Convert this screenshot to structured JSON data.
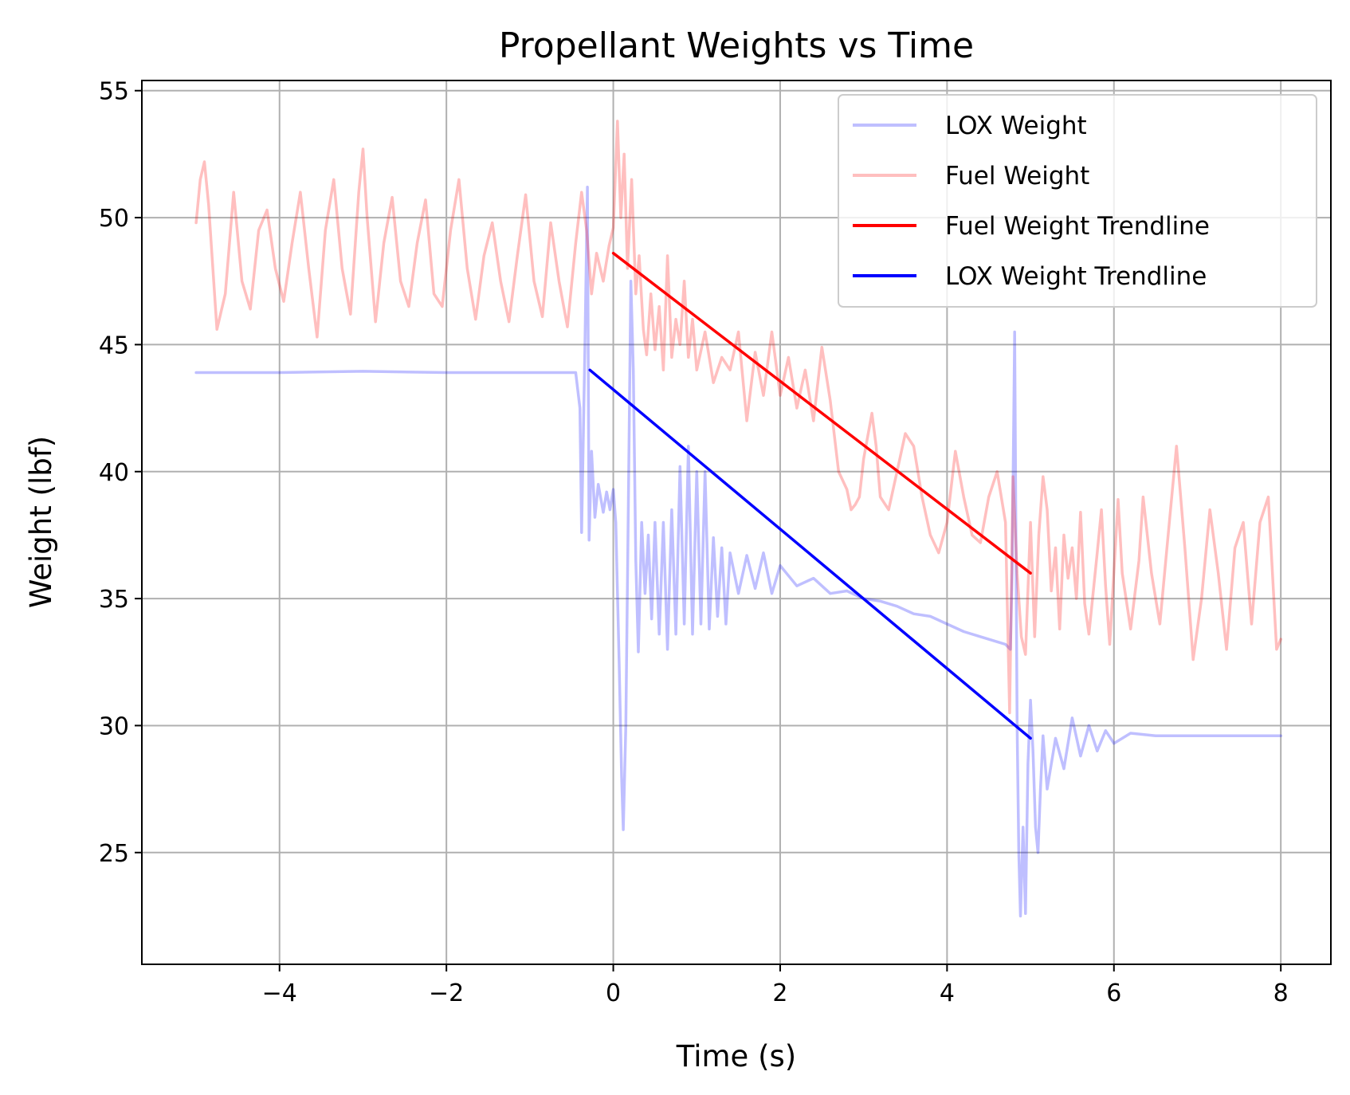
{
  "chart_data": {
    "type": "line",
    "title": "Propellant Weights vs Time",
    "xlabel": "Time (s)",
    "ylabel": "Weight (lbf)",
    "xlim": [
      -5.65,
      8.6
    ],
    "ylim": [
      20.6,
      55.4
    ],
    "xticks": [
      -4,
      -2,
      0,
      2,
      4,
      6,
      8
    ],
    "yticks": [
      25,
      30,
      35,
      40,
      45,
      50,
      55
    ],
    "grid": true,
    "legend_position": "top-right",
    "series": [
      {
        "name": "LOX Weight",
        "color": "#0000ff",
        "opacity": 0.25,
        "points": [
          [
            -5.0,
            43.9
          ],
          [
            -4.0,
            43.9
          ],
          [
            -3.0,
            43.95
          ],
          [
            -2.0,
            43.9
          ],
          [
            -1.0,
            43.9
          ],
          [
            -0.45,
            43.9
          ],
          [
            -0.4,
            42.5
          ],
          [
            -0.38,
            37.6
          ],
          [
            -0.34,
            45.0
          ],
          [
            -0.31,
            51.2
          ],
          [
            -0.29,
            37.3
          ],
          [
            -0.26,
            40.8
          ],
          [
            -0.22,
            38.2
          ],
          [
            -0.18,
            39.5
          ],
          [
            -0.12,
            38.4
          ],
          [
            -0.08,
            39.2
          ],
          [
            -0.04,
            38.5
          ],
          [
            0.0,
            39.3
          ],
          [
            0.03,
            38.0
          ],
          [
            0.07,
            32.5
          ],
          [
            0.1,
            28.0
          ],
          [
            0.12,
            25.9
          ],
          [
            0.15,
            30.0
          ],
          [
            0.18,
            38.5
          ],
          [
            0.21,
            47.5
          ],
          [
            0.24,
            44.0
          ],
          [
            0.27,
            36.5
          ],
          [
            0.3,
            32.9
          ],
          [
            0.34,
            38.0
          ],
          [
            0.38,
            35.2
          ],
          [
            0.42,
            37.5
          ],
          [
            0.46,
            34.2
          ],
          [
            0.5,
            38.0
          ],
          [
            0.55,
            33.6
          ],
          [
            0.6,
            38.0
          ],
          [
            0.65,
            33.0
          ],
          [
            0.7,
            38.5
          ],
          [
            0.75,
            33.6
          ],
          [
            0.8,
            40.2
          ],
          [
            0.85,
            34.0
          ],
          [
            0.9,
            41.0
          ],
          [
            0.95,
            33.6
          ],
          [
            1.0,
            40.0
          ],
          [
            1.05,
            34.0
          ],
          [
            1.1,
            40.0
          ],
          [
            1.15,
            33.8
          ],
          [
            1.2,
            37.4
          ],
          [
            1.25,
            34.3
          ],
          [
            1.3,
            37.0
          ],
          [
            1.35,
            34.0
          ],
          [
            1.4,
            36.8
          ],
          [
            1.5,
            35.2
          ],
          [
            1.6,
            36.7
          ],
          [
            1.7,
            35.4
          ],
          [
            1.8,
            36.8
          ],
          [
            1.9,
            35.2
          ],
          [
            2.0,
            36.3
          ],
          [
            2.2,
            35.5
          ],
          [
            2.4,
            35.8
          ],
          [
            2.6,
            35.2
          ],
          [
            2.8,
            35.3
          ],
          [
            3.0,
            35.0
          ],
          [
            3.2,
            34.9
          ],
          [
            3.4,
            34.7
          ],
          [
            3.6,
            34.4
          ],
          [
            3.8,
            34.3
          ],
          [
            4.0,
            34.0
          ],
          [
            4.2,
            33.7
          ],
          [
            4.4,
            33.5
          ],
          [
            4.6,
            33.3
          ],
          [
            4.7,
            33.2
          ],
          [
            4.76,
            33.0
          ],
          [
            4.78,
            36.0
          ],
          [
            4.81,
            45.5
          ],
          [
            4.84,
            30.0
          ],
          [
            4.86,
            25.0
          ],
          [
            4.88,
            22.5
          ],
          [
            4.91,
            26.0
          ],
          [
            4.94,
            22.6
          ],
          [
            4.97,
            28.5
          ],
          [
            5.0,
            31.0
          ],
          [
            5.03,
            29.0
          ],
          [
            5.06,
            26.0
          ],
          [
            5.09,
            25.0
          ],
          [
            5.12,
            27.5
          ],
          [
            5.15,
            29.6
          ],
          [
            5.2,
            27.5
          ],
          [
            5.3,
            29.5
          ],
          [
            5.4,
            28.3
          ],
          [
            5.5,
            30.3
          ],
          [
            5.6,
            28.8
          ],
          [
            5.7,
            30.0
          ],
          [
            5.8,
            29.0
          ],
          [
            5.9,
            29.8
          ],
          [
            6.0,
            29.3
          ],
          [
            6.2,
            29.7
          ],
          [
            6.5,
            29.6
          ],
          [
            7.0,
            29.6
          ],
          [
            7.5,
            29.6
          ],
          [
            8.0,
            29.6
          ]
        ]
      },
      {
        "name": "Fuel Weight",
        "color": "#ff0000",
        "opacity": 0.25,
        "points": [
          [
            -5.0,
            49.8
          ],
          [
            -4.95,
            51.5
          ],
          [
            -4.9,
            52.2
          ],
          [
            -4.85,
            50.5
          ],
          [
            -4.75,
            45.6
          ],
          [
            -4.65,
            47.0
          ],
          [
            -4.55,
            51.0
          ],
          [
            -4.45,
            47.5
          ],
          [
            -4.35,
            46.4
          ],
          [
            -4.25,
            49.5
          ],
          [
            -4.15,
            50.3
          ],
          [
            -4.05,
            48.0
          ],
          [
            -3.95,
            46.7
          ],
          [
            -3.85,
            49.0
          ],
          [
            -3.75,
            51.0
          ],
          [
            -3.65,
            48.0
          ],
          [
            -3.55,
            45.3
          ],
          [
            -3.45,
            49.5
          ],
          [
            -3.35,
            51.5
          ],
          [
            -3.25,
            48.0
          ],
          [
            -3.15,
            46.2
          ],
          [
            -3.05,
            51.0
          ],
          [
            -3.0,
            52.7
          ],
          [
            -2.95,
            50.0
          ],
          [
            -2.85,
            45.9
          ],
          [
            -2.75,
            49.0
          ],
          [
            -2.65,
            50.8
          ],
          [
            -2.55,
            47.5
          ],
          [
            -2.45,
            46.5
          ],
          [
            -2.35,
            49.0
          ],
          [
            -2.25,
            50.7
          ],
          [
            -2.15,
            47.0
          ],
          [
            -2.05,
            46.5
          ],
          [
            -1.95,
            49.5
          ],
          [
            -1.85,
            51.5
          ],
          [
            -1.75,
            48.0
          ],
          [
            -1.65,
            46.0
          ],
          [
            -1.55,
            48.5
          ],
          [
            -1.45,
            49.8
          ],
          [
            -1.35,
            47.5
          ],
          [
            -1.25,
            45.9
          ],
          [
            -1.15,
            48.5
          ],
          [
            -1.05,
            50.9
          ],
          [
            -0.95,
            47.5
          ],
          [
            -0.85,
            46.1
          ],
          [
            -0.75,
            49.8
          ],
          [
            -0.65,
            47.5
          ],
          [
            -0.55,
            45.7
          ],
          [
            -0.45,
            49.0
          ],
          [
            -0.38,
            51.0
          ],
          [
            -0.32,
            49.5
          ],
          [
            -0.26,
            47.0
          ],
          [
            -0.2,
            48.6
          ],
          [
            -0.12,
            47.5
          ],
          [
            -0.05,
            48.9
          ],
          [
            0.0,
            49.6
          ],
          [
            0.05,
            53.8
          ],
          [
            0.09,
            50.0
          ],
          [
            0.13,
            52.5
          ],
          [
            0.17,
            48.0
          ],
          [
            0.22,
            51.5
          ],
          [
            0.27,
            47.0
          ],
          [
            0.31,
            48.5
          ],
          [
            0.36,
            45.6
          ],
          [
            0.4,
            44.6
          ],
          [
            0.45,
            47.0
          ],
          [
            0.5,
            44.8
          ],
          [
            0.55,
            46.5
          ],
          [
            0.6,
            44.0
          ],
          [
            0.65,
            48.5
          ],
          [
            0.7,
            44.5
          ],
          [
            0.75,
            46.0
          ],
          [
            0.8,
            45.0
          ],
          [
            0.85,
            47.5
          ],
          [
            0.9,
            44.5
          ],
          [
            0.95,
            46.0
          ],
          [
            1.0,
            44.0
          ],
          [
            1.1,
            45.5
          ],
          [
            1.2,
            43.5
          ],
          [
            1.3,
            44.5
          ],
          [
            1.4,
            44.0
          ],
          [
            1.5,
            45.5
          ],
          [
            1.6,
            42.0
          ],
          [
            1.7,
            44.7
          ],
          [
            1.8,
            43.0
          ],
          [
            1.9,
            45.5
          ],
          [
            2.0,
            43.0
          ],
          [
            2.1,
            44.5
          ],
          [
            2.2,
            42.5
          ],
          [
            2.3,
            44.0
          ],
          [
            2.4,
            42.0
          ],
          [
            2.5,
            44.9
          ],
          [
            2.6,
            42.8
          ],
          [
            2.7,
            40.0
          ],
          [
            2.8,
            39.3
          ],
          [
            2.85,
            38.5
          ],
          [
            2.9,
            38.7
          ],
          [
            2.95,
            39.0
          ],
          [
            3.0,
            40.5
          ],
          [
            3.1,
            42.3
          ],
          [
            3.15,
            41.0
          ],
          [
            3.2,
            39.0
          ],
          [
            3.3,
            38.5
          ],
          [
            3.4,
            40.0
          ],
          [
            3.5,
            41.5
          ],
          [
            3.6,
            41.0
          ],
          [
            3.7,
            39.0
          ],
          [
            3.8,
            37.5
          ],
          [
            3.9,
            36.8
          ],
          [
            4.0,
            38.0
          ],
          [
            4.1,
            40.8
          ],
          [
            4.2,
            39.0
          ],
          [
            4.3,
            37.5
          ],
          [
            4.4,
            37.2
          ],
          [
            4.5,
            39.0
          ],
          [
            4.6,
            40.0
          ],
          [
            4.7,
            38.0
          ],
          [
            4.75,
            30.5
          ],
          [
            4.79,
            39.8
          ],
          [
            4.84,
            36.0
          ],
          [
            4.89,
            33.5
          ],
          [
            4.94,
            32.8
          ],
          [
            5.0,
            38.0
          ],
          [
            5.05,
            33.5
          ],
          [
            5.1,
            37.5
          ],
          [
            5.15,
            39.8
          ],
          [
            5.2,
            38.5
          ],
          [
            5.25,
            35.3
          ],
          [
            5.3,
            37.0
          ],
          [
            5.35,
            33.8
          ],
          [
            5.4,
            37.5
          ],
          [
            5.45,
            35.8
          ],
          [
            5.5,
            37.0
          ],
          [
            5.55,
            35.0
          ],
          [
            5.6,
            38.4
          ],
          [
            5.65,
            34.8
          ],
          [
            5.7,
            33.6
          ],
          [
            5.8,
            36.8
          ],
          [
            5.85,
            38.5
          ],
          [
            5.9,
            35.5
          ],
          [
            5.95,
            33.2
          ],
          [
            6.05,
            38.9
          ],
          [
            6.1,
            36.0
          ],
          [
            6.2,
            33.8
          ],
          [
            6.3,
            36.5
          ],
          [
            6.35,
            39.0
          ],
          [
            6.45,
            36.0
          ],
          [
            6.55,
            34.0
          ],
          [
            6.65,
            37.5
          ],
          [
            6.75,
            41.0
          ],
          [
            6.85,
            37.0
          ],
          [
            6.95,
            32.6
          ],
          [
            7.05,
            35.0
          ],
          [
            7.15,
            38.5
          ],
          [
            7.25,
            36.0
          ],
          [
            7.35,
            33.0
          ],
          [
            7.45,
            37.0
          ],
          [
            7.55,
            38.0
          ],
          [
            7.65,
            34.0
          ],
          [
            7.75,
            38.0
          ],
          [
            7.85,
            39.0
          ],
          [
            7.95,
            33.0
          ],
          [
            8.0,
            33.4
          ]
        ]
      },
      {
        "name": "Fuel Weight Trendline",
        "color": "#ff0000",
        "opacity": 1,
        "points": [
          [
            0.0,
            48.6
          ],
          [
            5.0,
            36.0
          ]
        ]
      },
      {
        "name": "LOX Weight Trendline",
        "color": "#0000ff",
        "opacity": 1,
        "points": [
          [
            -0.28,
            44.0
          ],
          [
            5.0,
            29.5
          ]
        ]
      }
    ]
  }
}
